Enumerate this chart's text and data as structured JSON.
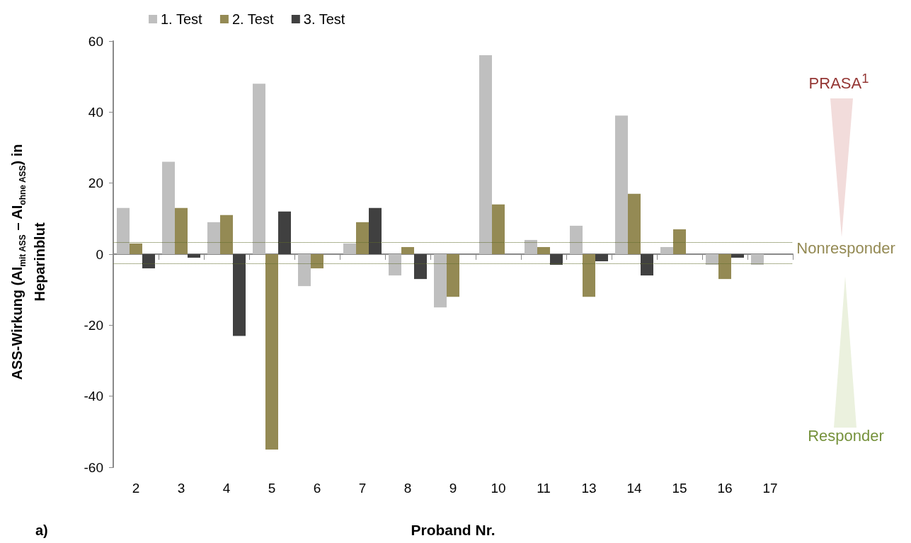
{
  "chart_data": {
    "type": "bar",
    "xlabel": "Proband Nr.",
    "ylabel": "ASS-Wirkung  (AI$_{mit ASS}$ – AI$_{ohne ASS}$) in Heparinblut",
    "categories": [
      "2",
      "3",
      "4",
      "5",
      "6",
      "7",
      "8",
      "9",
      "10",
      "11",
      "13",
      "14",
      "15",
      "16",
      "17"
    ],
    "series": [
      {
        "name": "1. Test",
        "color": "#bfbfbf",
        "values": [
          13,
          26,
          9,
          48,
          -9,
          3,
          -6,
          -15,
          56,
          4,
          8,
          39,
          2,
          -3,
          -3
        ]
      },
      {
        "name": "2. Test",
        "color": "#948a54",
        "values": [
          3,
          13,
          11,
          -55,
          -4,
          9,
          2,
          -12,
          14,
          2,
          -12,
          17,
          7,
          -7,
          null
        ]
      },
      {
        "name": "3. Test",
        "color": "#404040",
        "values": [
          -4,
          -1,
          -23,
          12,
          null,
          13,
          -7,
          null,
          null,
          -3,
          -2,
          -6,
          null,
          -1,
          null
        ]
      }
    ],
    "ylim": [
      -60,
      60
    ],
    "yticks": [
      -60,
      -40,
      -20,
      0,
      20,
      40,
      60
    ],
    "legend": "top",
    "ref_lines": [
      {
        "axis": "y",
        "value": 3.4,
        "color": "#5f6b2a",
        "line_style": "dotted"
      },
      {
        "axis": "y",
        "value": -2.6,
        "color": "#5f6b2a",
        "line_style": "dotted"
      }
    ],
    "annotations": [
      "PRASA$^{1}$",
      "Nonresponder",
      "Responder",
      "a)"
    ]
  }
}
